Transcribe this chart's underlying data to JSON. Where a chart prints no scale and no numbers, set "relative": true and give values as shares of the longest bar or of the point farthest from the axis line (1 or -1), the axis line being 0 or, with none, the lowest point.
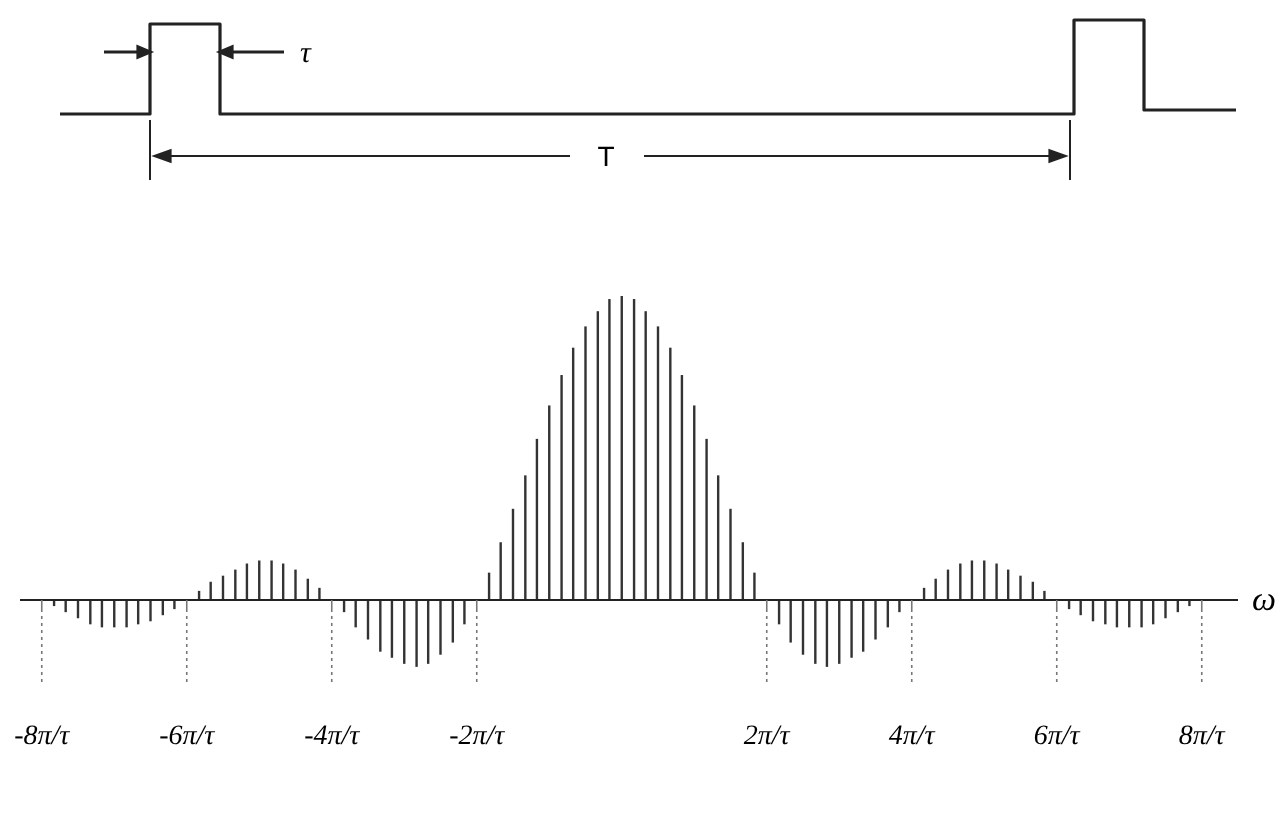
{
  "chart_data": {
    "type": "bar",
    "relative": true,
    "xlabel": "ω",
    "color": "#333333",
    "annotations": [
      "τ",
      "T"
    ],
    "xlim": [
      -8.3,
      8.5
    ],
    "xticks": [
      {
        "value": -8,
        "label": "-8π/τ"
      },
      {
        "value": -6,
        "label": "-6π/τ"
      },
      {
        "value": -4,
        "label": "-4π/τ"
      },
      {
        "value": -2,
        "label": "-2π/τ"
      },
      {
        "value": 2,
        "label": "2π/τ"
      },
      {
        "value": 4,
        "label": "4π/τ"
      },
      {
        "value": 6,
        "label": "6π/τ"
      },
      {
        "value": 8,
        "label": "8π/τ"
      }
    ],
    "x": [
      -8,
      -7.83,
      -7.67,
      -7.5,
      -7.33,
      -7.17,
      -7,
      -6.83,
      -6.67,
      -6.5,
      -6.33,
      -6.17,
      -6,
      -5.83,
      -5.67,
      -5.5,
      -5.33,
      -5.17,
      -5,
      -4.83,
      -4.67,
      -4.5,
      -4.33,
      -4.17,
      -4,
      -3.83,
      -3.67,
      -3.5,
      -3.33,
      -3.17,
      -3,
      -2.83,
      -2.67,
      -2.5,
      -2.33,
      -2.17,
      -2,
      -1.83,
      -1.67,
      -1.5,
      -1.33,
      -1.17,
      -1,
      -0.83,
      -0.67,
      -0.5,
      -0.33,
      -0.17,
      0,
      0.17,
      0.33,
      0.5,
      0.67,
      0.83,
      1,
      1.17,
      1.33,
      1.5,
      1.67,
      1.83,
      2,
      2.17,
      2.33,
      2.5,
      2.67,
      2.83,
      3,
      3.17,
      3.33,
      3.5,
      3.67,
      3.83,
      4,
      4.17,
      4.33,
      4.5,
      4.67,
      4.83,
      5,
      5.17,
      5.33,
      5.5,
      5.67,
      5.83,
      6,
      6.17,
      6.33,
      6.5,
      6.67,
      6.83,
      7,
      7.17,
      7.33,
      7.5,
      7.67,
      7.83,
      8
    ],
    "values": [
      0,
      -0.02,
      -0.04,
      -0.06,
      -0.08,
      -0.09,
      -0.09,
      -0.09,
      -0.08,
      -0.07,
      -0.05,
      -0.03,
      0,
      0.03,
      0.06,
      0.08,
      0.1,
      0.12,
      0.13,
      0.13,
      0.12,
      0.1,
      0.07,
      0.04,
      0,
      -0.04,
      -0.09,
      -0.13,
      -0.17,
      -0.19,
      -0.21,
      -0.22,
      -0.21,
      -0.18,
      -0.14,
      -0.08,
      0,
      0.09,
      0.19,
      0.3,
      0.41,
      0.53,
      0.64,
      0.74,
      0.83,
      0.9,
      0.95,
      0.99,
      1,
      0.99,
      0.95,
      0.9,
      0.83,
      0.74,
      0.64,
      0.53,
      0.41,
      0.3,
      0.19,
      0.09,
      0,
      -0.08,
      -0.14,
      -0.18,
      -0.21,
      -0.22,
      -0.21,
      -0.19,
      -0.17,
      -0.13,
      -0.09,
      -0.04,
      0,
      0.04,
      0.07,
      0.1,
      0.12,
      0.13,
      0.13,
      0.12,
      0.1,
      0.08,
      0.06,
      0.03,
      0,
      -0.03,
      -0.05,
      -0.07,
      -0.08,
      -0.09,
      -0.09,
      -0.09,
      -0.08,
      -0.06,
      -0.04,
      -0.02,
      0
    ]
  }
}
